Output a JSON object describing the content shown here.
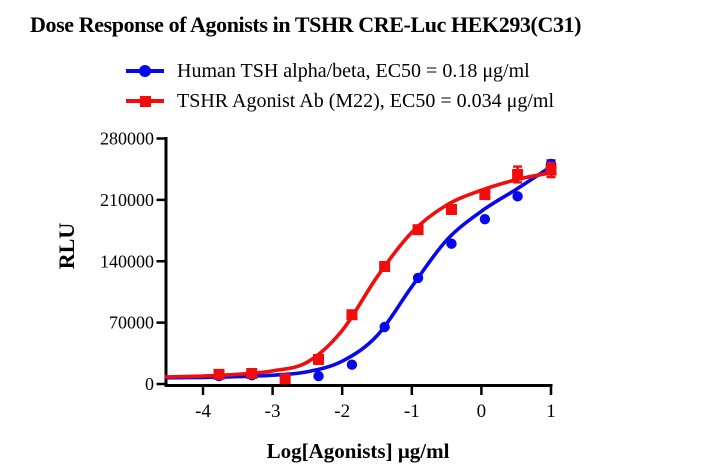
{
  "title": "Dose Response of Agonists in TSHR CRE-Luc HEK293(C31)",
  "colors": {
    "blue_series": "#0707ee",
    "red_series": "#f20d0d",
    "axis": "#000000",
    "background": "#ffffff"
  },
  "legend": [
    {
      "name": "Human TSH alpha/beta, EC50 = 0.18 μg/ml",
      "marker": "circle",
      "color": "#0707ee"
    },
    {
      "name": "TSHR Agonist Ab (M22), EC50 = 0.034 μg/ml",
      "marker": "square",
      "color": "#f20d0d"
    }
  ],
  "chart_data": {
    "type": "scatter",
    "title": "Dose Response of Agonists in TSHR CRE-Luc HEK293(C31)",
    "xlabel": "Log[Agonists] μg/ml",
    "ylabel": "RLU",
    "xlim": [
      -4.53,
      1
    ],
    "ylim": [
      0,
      280000
    ],
    "x_ticks": [
      "-4",
      "-3",
      "-2",
      "-1",
      "0",
      "1"
    ],
    "x_tick_values": [
      -4,
      -3,
      -2,
      -1,
      0,
      1
    ],
    "y_ticks": [
      "0",
      "70000",
      "140000",
      "210000",
      "280000"
    ],
    "y_tick_values": [
      0,
      70000,
      140000,
      210000,
      280000
    ],
    "grid": false,
    "legend_position": "top",
    "series": [
      {
        "name": "Human TSH alpha/beta",
        "ec50_label": "EC50 = 0.18 μg/ml",
        "marker": "circle",
        "color": "#0707ee",
        "x": [
          -3.77,
          -3.3,
          -2.82,
          -2.34,
          -1.86,
          -1.39,
          -0.91,
          -0.43,
          0.05,
          0.52,
          1.0
        ],
        "y": [
          9000,
          10000,
          6000,
          9000,
          22000,
          65000,
          121000,
          160000,
          188000,
          214000,
          251000
        ],
        "yerr": [
          0,
          0,
          0,
          0,
          0,
          0,
          0,
          0,
          0,
          0,
          4000
        ],
        "fit_curve": {
          "x": [
            -4.53,
            -4.0,
            -3.5,
            -3.0,
            -2.5,
            -2.0,
            -1.5,
            -1.0,
            -0.5,
            0.0,
            0.5,
            1.0
          ],
          "y": [
            7000,
            7500,
            8500,
            10000,
            14000,
            26000,
            55000,
            111000,
            164000,
            197000,
            222000,
            248000
          ]
        }
      },
      {
        "name": "TSHR Agonist Ab (M22)",
        "ec50_label": "EC50 = 0.034 μg/ml",
        "marker": "square",
        "color": "#f20d0d",
        "x": [
          -3.77,
          -3.3,
          -2.82,
          -2.34,
          -1.86,
          -1.39,
          -0.91,
          -0.43,
          0.05,
          0.52,
          1.0
        ],
        "y": [
          11000,
          12000,
          6000,
          28000,
          79000,
          134000,
          176000,
          199000,
          216000,
          239000,
          244000
        ],
        "yerr": [
          0,
          0,
          0,
          0,
          0,
          0,
          0,
          0,
          0,
          9000,
          8000
        ],
        "fit_curve": {
          "x": [
            -4.53,
            -4.0,
            -3.5,
            -3.0,
            -2.5,
            -2.0,
            -1.5,
            -1.0,
            -0.5,
            0.0,
            0.5,
            1.0
          ],
          "y": [
            8000,
            9000,
            11000,
            15000,
            25000,
            61000,
            122000,
            173000,
            204000,
            221000,
            233000,
            241000
          ]
        }
      }
    ]
  }
}
